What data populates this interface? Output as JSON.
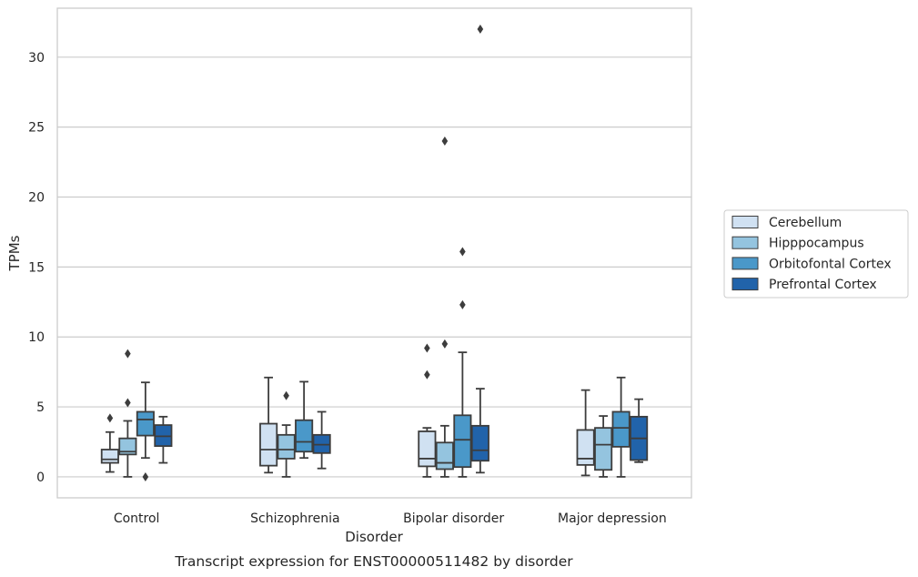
{
  "chart_data": {
    "type": "boxplot",
    "title": "",
    "caption": "Transcript expression for ENST00000511482 by disorder",
    "xlabel": "Disorder",
    "ylabel": "TPMs",
    "ylim": [
      -1.5,
      33.5
    ],
    "yticks": [
      0,
      5,
      10,
      15,
      20,
      25,
      30
    ],
    "grid": "horizontal",
    "legend_position": "right",
    "categories": [
      "Control",
      "Schizophrenia",
      "Bipolar disorder",
      "Major depression"
    ],
    "series": [
      {
        "name": "Cerebellum",
        "color": "#d0e1f2",
        "boxes": [
          {
            "whislo": 0.35,
            "q1": 1.0,
            "med": 1.25,
            "q3": 1.95,
            "whishi": 3.2,
            "fliers": [
              4.2
            ]
          },
          {
            "whislo": 0.3,
            "q1": 0.8,
            "med": 1.95,
            "q3": 3.8,
            "whishi": 7.1,
            "fliers": []
          },
          {
            "whislo": 0.0,
            "q1": 0.75,
            "med": 1.3,
            "q3": 3.25,
            "whishi": 3.5,
            "fliers": [
              7.3,
              9.2
            ]
          },
          {
            "whislo": 0.1,
            "q1": 0.85,
            "med": 1.3,
            "q3": 3.35,
            "whishi": 6.2,
            "fliers": []
          }
        ]
      },
      {
        "name": "Hipppocampus",
        "color": "#94c4df",
        "boxes": [
          {
            "whislo": 0.0,
            "q1": 1.6,
            "med": 1.8,
            "q3": 2.75,
            "whishi": 4.0,
            "fliers": [
              5.3,
              8.8
            ]
          },
          {
            "whislo": 0.0,
            "q1": 1.3,
            "med": 1.95,
            "q3": 3.0,
            "whishi": 3.7,
            "fliers": [
              5.8
            ]
          },
          {
            "whislo": 0.0,
            "q1": 0.55,
            "med": 1.0,
            "q3": 2.45,
            "whishi": 3.65,
            "fliers": [
              9.5,
              24.0
            ]
          },
          {
            "whislo": 0.0,
            "q1": 0.5,
            "med": 2.3,
            "q3": 3.5,
            "whishi": 4.35,
            "fliers": []
          }
        ]
      },
      {
        "name": "Orbitofontal Cortex",
        "color": "#4a98c9",
        "boxes": [
          {
            "whislo": 1.35,
            "q1": 2.95,
            "med": 4.1,
            "q3": 4.65,
            "whishi": 6.75,
            "fliers": [
              0.0
            ]
          },
          {
            "whislo": 1.35,
            "q1": 1.8,
            "med": 2.5,
            "q3": 4.05,
            "whishi": 6.8,
            "fliers": []
          },
          {
            "whislo": 0.0,
            "q1": 0.7,
            "med": 2.65,
            "q3": 4.4,
            "whishi": 8.9,
            "fliers": [
              12.3,
              16.1
            ]
          },
          {
            "whislo": 0.0,
            "q1": 2.15,
            "med": 3.5,
            "q3": 4.65,
            "whishi": 7.1,
            "fliers": []
          }
        ]
      },
      {
        "name": "Prefrontal Cortex",
        "color": "#2163aa",
        "boxes": [
          {
            "whislo": 1.0,
            "q1": 2.2,
            "med": 2.9,
            "q3": 3.7,
            "whishi": 4.3,
            "fliers": []
          },
          {
            "whislo": 0.6,
            "q1": 1.7,
            "med": 2.3,
            "q3": 3.0,
            "whishi": 4.65,
            "fliers": []
          },
          {
            "whislo": 0.3,
            "q1": 1.15,
            "med": 1.9,
            "q3": 3.65,
            "whishi": 6.3,
            "fliers": [
              32.0
            ]
          },
          {
            "whislo": 1.05,
            "q1": 1.2,
            "med": 2.75,
            "q3": 4.3,
            "whishi": 5.55,
            "fliers": []
          }
        ]
      }
    ]
  },
  "colors": {
    "edge": "#3d3d3d",
    "grid": "#cccccc",
    "frame": "#cccccc",
    "flier": "#3d3d3d"
  }
}
